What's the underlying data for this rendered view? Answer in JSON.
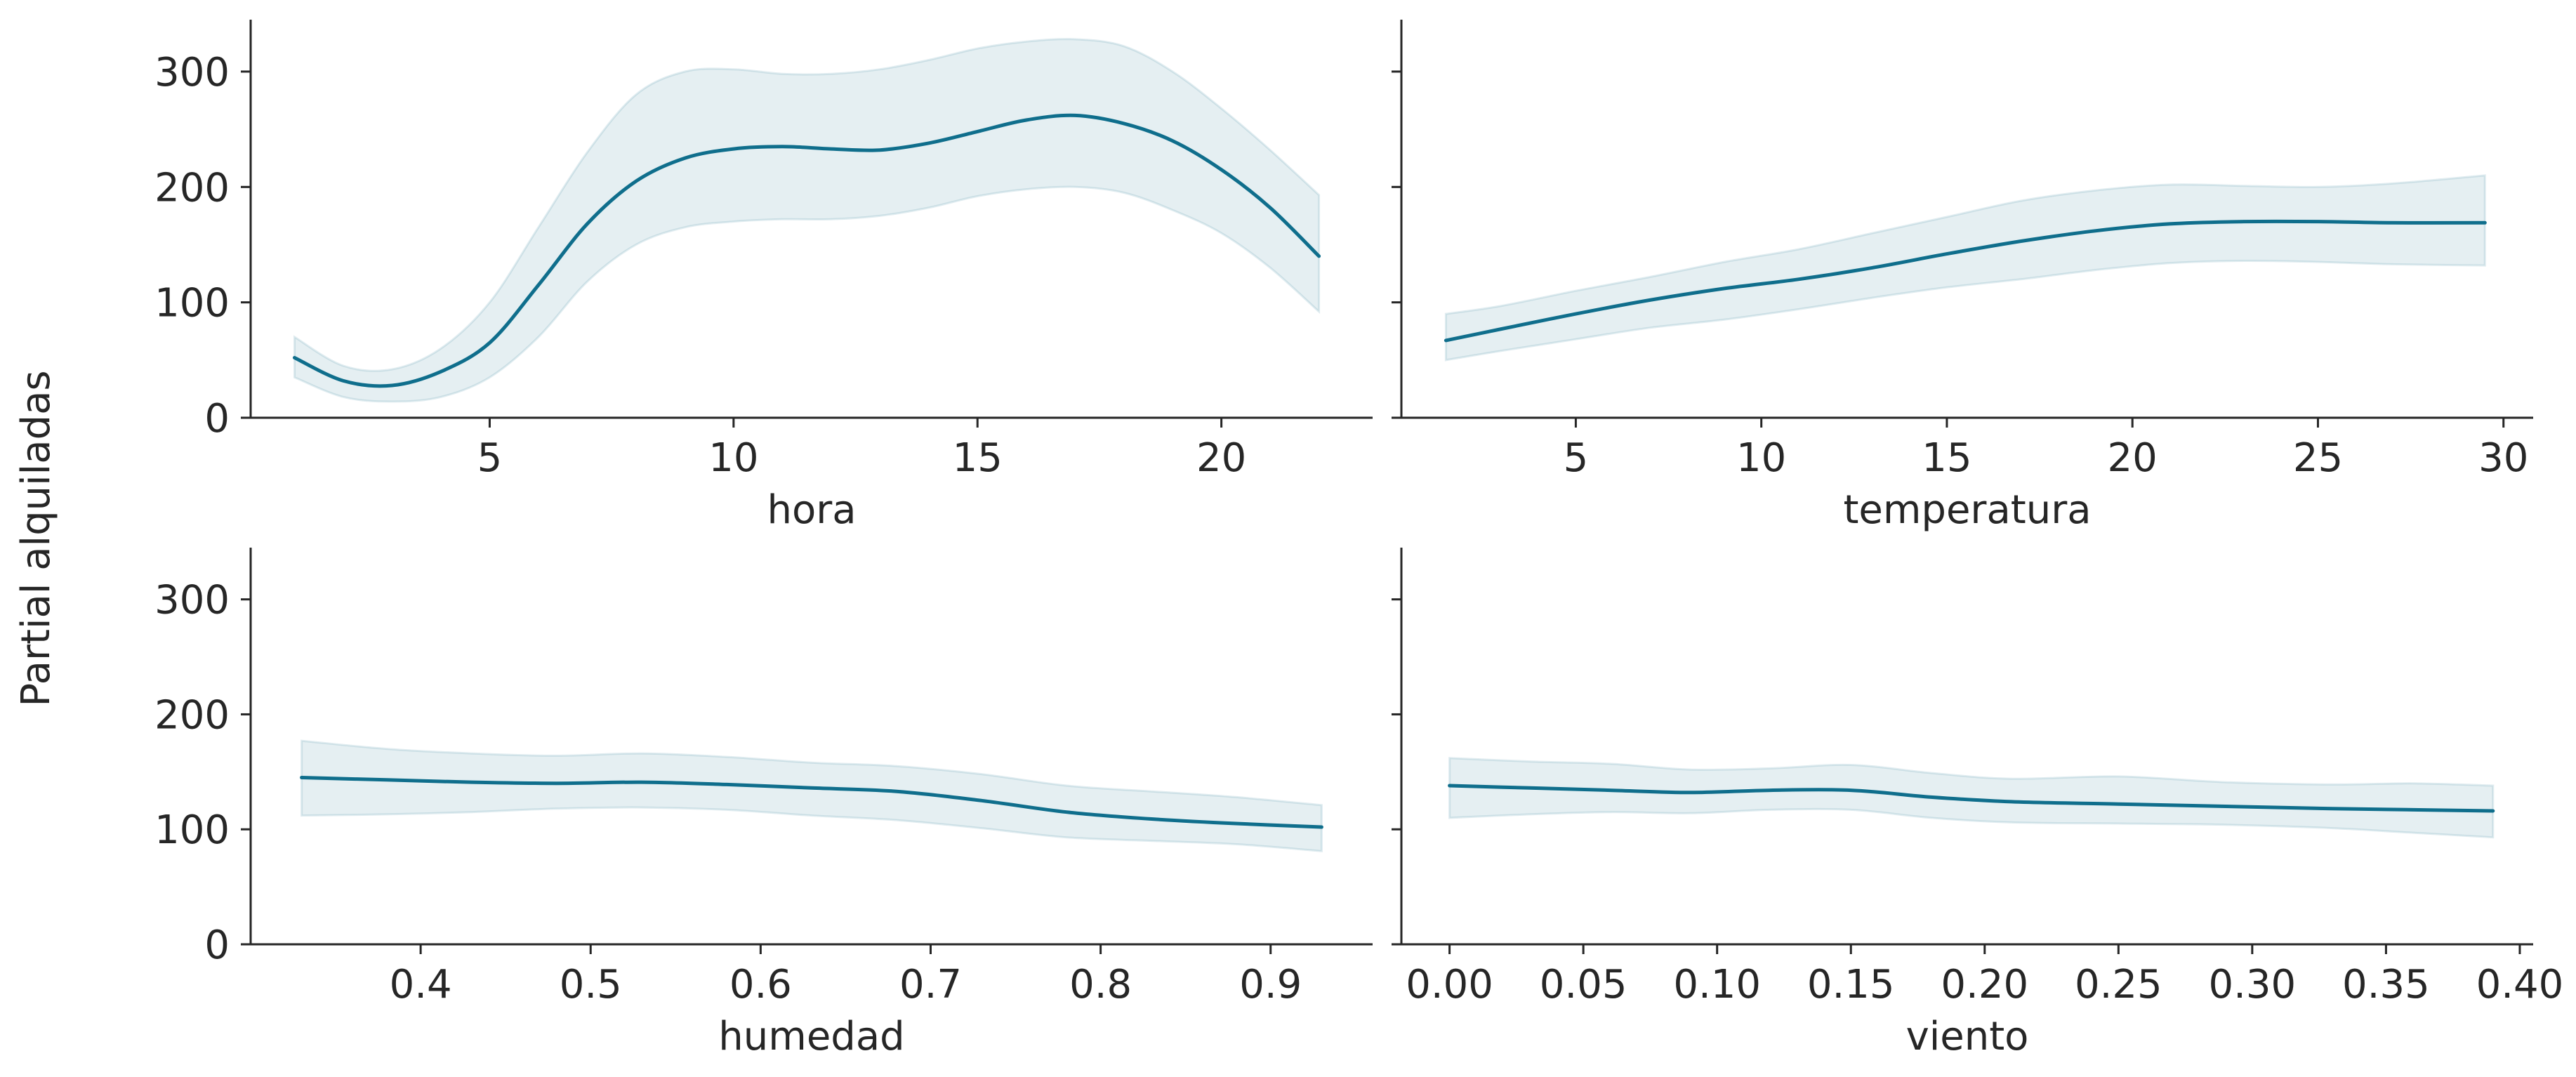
{
  "figure": {
    "ylabel": "Partial alquiladas",
    "line_color": "#0f6e8c",
    "band_color": "#0f6e8c",
    "band_opacity": 0.11
  },
  "chart_data": [
    {
      "type": "line",
      "xlabel": "hora",
      "ylabel": "",
      "xlim": [
        0.1,
        23.1
      ],
      "ylim": [
        0,
        345
      ],
      "x_ticks": [
        "5",
        "10",
        "15",
        "20"
      ],
      "x_tick_values": [
        5,
        10,
        15,
        20
      ],
      "y_ticks": [
        "0",
        "100",
        "200",
        "300"
      ],
      "y_tick_values": [
        0,
        100,
        200,
        300
      ],
      "show_y_tick_labels": true,
      "grid": false,
      "series": [
        {
          "x": [
            1.0,
            2.0,
            3.0,
            4.0,
            5.0,
            6.0,
            7.0,
            8.0,
            9.0,
            10.0,
            11.0,
            12.0,
            13.0,
            14.0,
            15.0,
            16.0,
            17.0,
            18.0,
            19.0,
            20.0,
            21.0,
            22.0
          ],
          "y": [
            52,
            32,
            28,
            40,
            65,
            115,
            168,
            205,
            225,
            233,
            235,
            233,
            232,
            238,
            248,
            258,
            262,
            255,
            240,
            215,
            182,
            140
          ],
          "lower": [
            35,
            18,
            14,
            18,
            35,
            70,
            118,
            150,
            165,
            170,
            172,
            172,
            175,
            182,
            192,
            198,
            200,
            195,
            180,
            160,
            130,
            92
          ],
          "upper": [
            70,
            45,
            42,
            60,
            100,
            165,
            230,
            280,
            300,
            302,
            298,
            298,
            302,
            310,
            320,
            326,
            328,
            322,
            300,
            268,
            232,
            193
          ]
        }
      ]
    },
    {
      "type": "line",
      "xlabel": "temperatura",
      "ylabel": "",
      "xlim": [
        0.3,
        30.8
      ],
      "ylim": [
        0,
        345
      ],
      "x_ticks": [
        "5",
        "10",
        "15",
        "20",
        "25",
        "30"
      ],
      "x_tick_values": [
        5,
        10,
        15,
        20,
        25,
        30
      ],
      "y_ticks": [
        "0",
        "100",
        "200",
        "300"
      ],
      "y_tick_values": [
        0,
        100,
        200,
        300
      ],
      "show_y_tick_labels": false,
      "grid": false,
      "series": [
        {
          "x": [
            1.5,
            3.0,
            5.0,
            7.0,
            9.0,
            11.0,
            13.0,
            15.0,
            17.0,
            19.0,
            21.0,
            23.0,
            25.0,
            27.0,
            29.5
          ],
          "y": [
            67,
            77,
            90,
            102,
            112,
            120,
            130,
            142,
            153,
            162,
            168,
            170,
            170,
            169,
            169
          ],
          "lower": [
            50,
            58,
            68,
            78,
            85,
            94,
            104,
            113,
            120,
            128,
            134,
            136,
            135,
            133,
            132
          ],
          "upper": [
            90,
            97,
            110,
            122,
            135,
            146,
            160,
            174,
            188,
            197,
            202,
            201,
            200,
            203,
            210
          ]
        }
      ]
    },
    {
      "type": "line",
      "xlabel": "humedad",
      "ylabel": "",
      "xlim": [
        0.3,
        0.96
      ],
      "ylim": [
        0,
        345
      ],
      "x_ticks": [
        "0.4",
        "0.5",
        "0.6",
        "0.7",
        "0.8",
        "0.9"
      ],
      "x_tick_values": [
        0.4,
        0.5,
        0.6,
        0.7,
        0.8,
        0.9
      ],
      "y_ticks": [
        "0",
        "100",
        "200",
        "300"
      ],
      "y_tick_values": [
        0,
        100,
        200,
        300
      ],
      "show_y_tick_labels": true,
      "grid": false,
      "series": [
        {
          "x": [
            0.33,
            0.38,
            0.43,
            0.48,
            0.53,
            0.58,
            0.63,
            0.68,
            0.73,
            0.78,
            0.83,
            0.88,
            0.93
          ],
          "y": [
            145,
            143,
            141,
            140,
            141,
            139,
            136,
            133,
            125,
            115,
            109,
            105,
            102
          ],
          "lower": [
            112,
            113,
            115,
            118,
            119,
            117,
            112,
            108,
            101,
            93,
            90,
            87,
            81
          ],
          "upper": [
            177,
            170,
            166,
            164,
            166,
            163,
            158,
            155,
            148,
            138,
            133,
            128,
            121
          ]
        }
      ]
    },
    {
      "type": "line",
      "xlabel": "viento",
      "ylabel": "",
      "xlim": [
        -0.018,
        0.405
      ],
      "ylim": [
        0,
        345
      ],
      "x_ticks": [
        "0.00",
        "0.05",
        "0.10",
        "0.15",
        "0.20",
        "0.25",
        "0.30",
        "0.35",
        "0.40"
      ],
      "x_tick_values": [
        0.0,
        0.05,
        0.1,
        0.15,
        0.2,
        0.25,
        0.3,
        0.35,
        0.4
      ],
      "y_ticks": [
        "0",
        "100",
        "200",
        "300"
      ],
      "y_tick_values": [
        0,
        100,
        200,
        300
      ],
      "show_y_tick_labels": false,
      "grid": false,
      "series": [
        {
          "x": [
            0.0,
            0.03,
            0.06,
            0.09,
            0.12,
            0.15,
            0.18,
            0.21,
            0.25,
            0.29,
            0.33,
            0.36,
            0.39
          ],
          "y": [
            138,
            136,
            134,
            132,
            134,
            134,
            128,
            124,
            122,
            120,
            118,
            117,
            116
          ],
          "lower": [
            110,
            113,
            115,
            114,
            117,
            117,
            110,
            106,
            105,
            104,
            101,
            97,
            93
          ],
          "upper": [
            162,
            159,
            157,
            152,
            153,
            156,
            149,
            144,
            146,
            141,
            139,
            140,
            138
          ]
        }
      ]
    }
  ]
}
